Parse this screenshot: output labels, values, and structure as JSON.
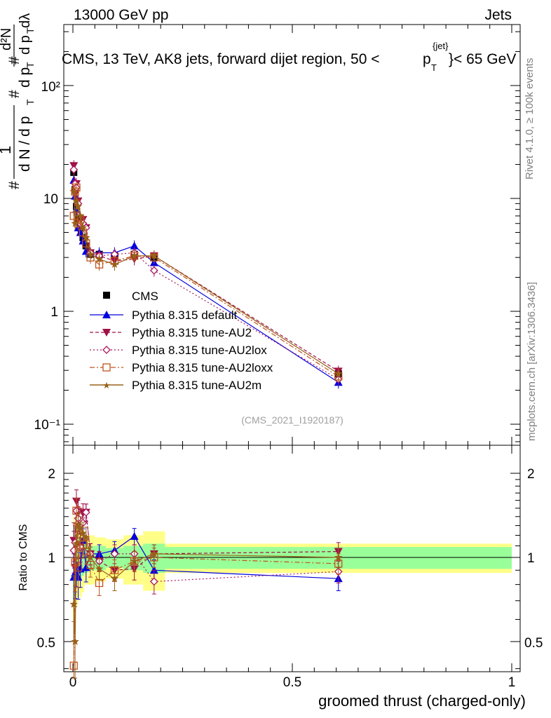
{
  "header": {
    "left": "13000 GeV pp",
    "right": "Jets",
    "plot_title": "CMS, 13 TeV, AK8 jets, forward dijet region, 50 <",
    "plot_title_ptsym": "p",
    "plot_title_sup": "{jet}",
    "plot_title_sub": "T",
    "plot_title_end": "}< 65 GeV",
    "analysis_id": "(CMS_2021_I1920187)"
  },
  "sidebar": {
    "rivet": "Rivet 4.1.0, ≥ 100k events",
    "mcplots": "mcplots.cern.ch [arXiv:1306.3436]"
  },
  "main_ylabel": {
    "hash1": "#",
    "one": "1",
    "dN": "d N / d p",
    "dN_sub": "T",
    "hash2": "#",
    "dp": "d p",
    "dp_sub": "T",
    "hash3": "#",
    "d2N": "d²N",
    "dpdl": "d p",
    "dpdl_sub": "T",
    "dl": "dλ"
  },
  "main_ticks": [
    "10⁻¹",
    "1",
    "10",
    "10²"
  ],
  "ratio_ylabel": "Ratio to CMS",
  "ratio_ticks": [
    "0.5",
    "1",
    "2"
  ],
  "x_ticks": [
    "0",
    "0.5",
    "1"
  ],
  "xlabel": "groomed thrust (charged-only)",
  "legend": [
    "CMS",
    "Pythia 8.315 default",
    "Pythia 8.315 tune-AU2",
    "Pythia 8.315 tune-AU2lox",
    "Pythia 8.315 tune-AU2loxx",
    "Pythia 8.315 tune-AU2m"
  ],
  "colors": {
    "cms": "#000000",
    "default": "#0000dd",
    "au2": "#a01045",
    "au2lox": "#a8185e",
    "au2loxx": "#c0541e",
    "au2m": "#98601a",
    "band_inner": "#99ff99",
    "band_outer": "#ffff88"
  },
  "chart_data": {
    "type": "scatter",
    "xlabel": "groomed thrust (charged-only)",
    "ylabel": "1/dN/dpT  d²N/dpT dλ",
    "yscale": "log",
    "xlim": [
      -0.02,
      1.02
    ],
    "ylim": [
      0.06,
      400
    ],
    "ratio_ylim": [
      0.35,
      2.3
    ],
    "x": [
      0.002,
      0.005,
      0.008,
      0.012,
      0.017,
      0.023,
      0.03,
      0.04,
      0.06,
      0.095,
      0.14,
      0.185,
      0.605
    ],
    "bins": [
      [
        0.0,
        0.004
      ],
      [
        0.004,
        0.006
      ],
      [
        0.006,
        0.01
      ],
      [
        0.01,
        0.014
      ],
      [
        0.014,
        0.02
      ],
      [
        0.02,
        0.026
      ],
      [
        0.026,
        0.034
      ],
      [
        0.034,
        0.05
      ],
      [
        0.05,
        0.075
      ],
      [
        0.075,
        0.115
      ],
      [
        0.115,
        0.16
      ],
      [
        0.16,
        0.21
      ],
      [
        0.21,
        1.0
      ]
    ],
    "series": [
      {
        "name": "CMS",
        "values": [
          17.0,
          12.0,
          8.5,
          6.5,
          5.5,
          4.5,
          3.8,
          3.2,
          3.2,
          3.1,
          3.2,
          3.0,
          0.28
        ],
        "errors": [
          1.5,
          1.0,
          0.8,
          0.6,
          0.5,
          0.4,
          0.35,
          0.3,
          0.3,
          0.3,
          0.3,
          0.3,
          0.03
        ],
        "ratio_band_inner": [
          0.3,
          0.25,
          0.2,
          0.18,
          0.16,
          0.14,
          0.12,
          0.1,
          0.1,
          0.08,
          0.1,
          0.12,
          0.09
        ],
        "ratio_band_outer": [
          0.4,
          0.35,
          0.33,
          0.3,
          0.28,
          0.25,
          0.2,
          0.2,
          0.18,
          0.16,
          0.2,
          0.24,
          0.12
        ]
      },
      {
        "name": "Pythia 8.315 default",
        "values": [
          14.5,
          10.5,
          8.0,
          5.5,
          5.0,
          4.2,
          3.4,
          3.3,
          3.3,
          3.3,
          3.8,
          2.7,
          0.235
        ],
        "ratios": [
          0.85,
          0.88,
          0.94,
          0.85,
          0.91,
          1.15,
          0.92,
          1.03,
          1.03,
          1.06,
          1.19,
          0.9,
          0.84
        ]
      },
      {
        "name": "Pythia 8.315 tune-AU2",
        "values": [
          19.5,
          11.0,
          13.5,
          9.5,
          6.0,
          6.5,
          5.5,
          3.3,
          3.1,
          2.8,
          2.9,
          3.1,
          0.295
        ],
        "ratios": [
          1.15,
          0.92,
          1.59,
          1.46,
          1.09,
          1.44,
          1.45,
          1.03,
          0.97,
          0.9,
          0.91,
          1.03,
          1.05
        ]
      },
      {
        "name": "Pythia 8.315 tune-AU2lox",
        "values": [
          18.0,
          13.5,
          12.5,
          9.0,
          6.0,
          6.0,
          5.5,
          3.3,
          3.1,
          3.2,
          3.3,
          2.3,
          0.25
        ],
        "ratios": [
          1.06,
          1.13,
          1.47,
          1.38,
          1.09,
          1.33,
          1.45,
          1.03,
          0.97,
          1.03,
          1.03,
          0.82,
          0.89
        ]
      },
      {
        "name": "Pythia 8.315 tune-AU2loxx",
        "values": [
          7.0,
          11.5,
          12.5,
          6.0,
          6.5,
          5.0,
          4.0,
          3.0,
          2.6,
          2.8,
          3.1,
          3.0,
          0.265
        ],
        "ratios": [
          0.41,
          0.96,
          1.47,
          0.92,
          1.18,
          1.11,
          1.05,
          0.94,
          0.81,
          0.9,
          0.97,
          1.0,
          0.95
        ]
      },
      {
        "name": "Pythia 8.315 tune-AU2m",
        "values": [
          11.5,
          6.0,
          9.5,
          8.5,
          7.0,
          5.5,
          4.5,
          3.2,
          2.9,
          2.6,
          3.1,
          3.1,
          0.28
        ],
        "ratios": [
          0.68,
          0.5,
          1.12,
          1.31,
          1.27,
          1.22,
          1.18,
          1.0,
          0.91,
          0.84,
          0.97,
          1.03,
          1.0
        ]
      }
    ]
  }
}
